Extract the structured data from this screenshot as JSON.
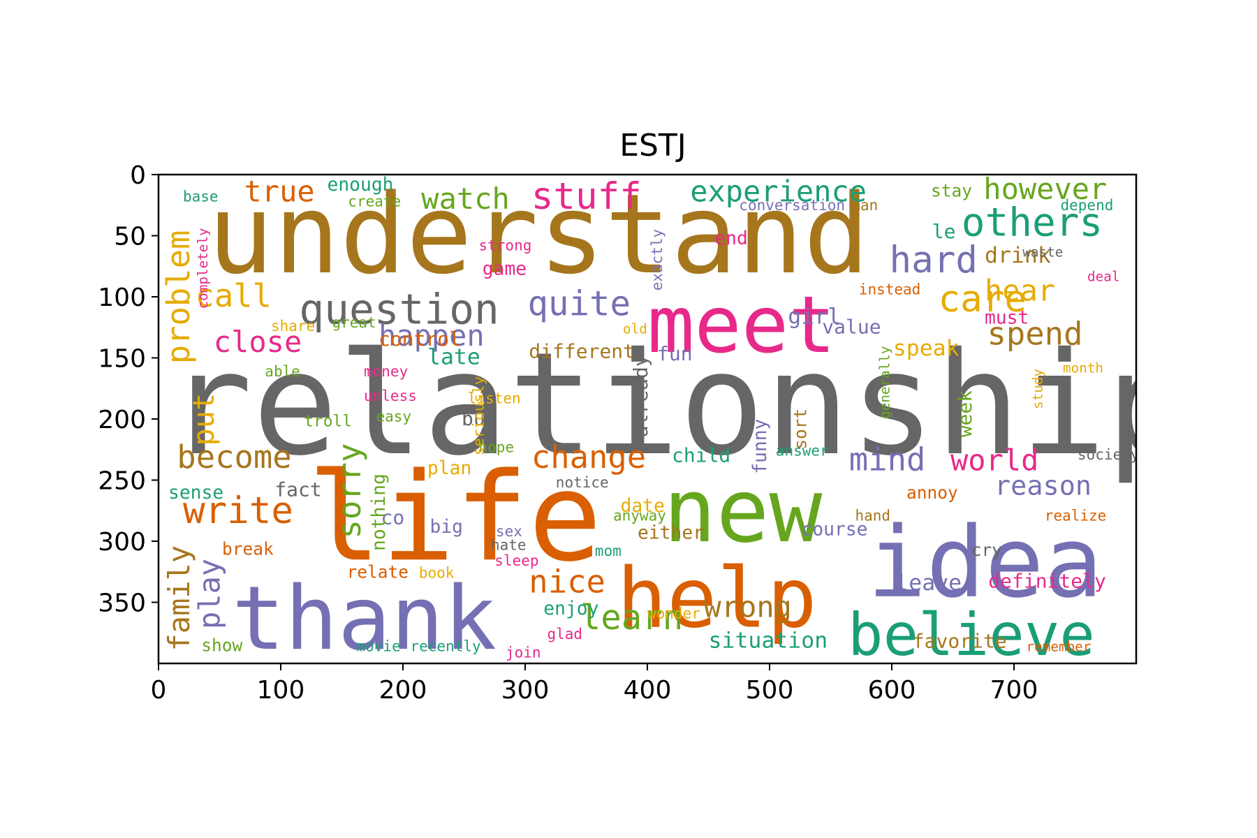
{
  "chart_data": {
    "type": "wordcloud",
    "title": "ESTJ",
    "xlabel": "",
    "ylabel": "",
    "xlim": [
      0,
      800
    ],
    "ylim": [
      400,
      0
    ],
    "xticks": [
      "0",
      "100",
      "200",
      "300",
      "400",
      "500",
      "600",
      "700"
    ],
    "yticks": [
      "0",
      "50",
      "100",
      "150",
      "200",
      "250",
      "300",
      "350"
    ],
    "palette": [
      "#1b9e77",
      "#d95f02",
      "#7570b3",
      "#e7298a",
      "#66a61e",
      "#e6ab02",
      "#a6761d",
      "#666666"
    ],
    "words": [
      {
        "text": "relationship",
        "x": 7,
        "y": 228,
        "size": 116,
        "color": "#666666"
      },
      {
        "text": "understand",
        "x": 40,
        "y": 80,
        "size": 90,
        "color": "#a6761d"
      },
      {
        "text": "life",
        "x": 122,
        "y": 315,
        "size": 100,
        "color": "#d95f02"
      },
      {
        "text": "thank",
        "x": 60,
        "y": 388,
        "size": 72,
        "color": "#7570b3"
      },
      {
        "text": "idea",
        "x": 580,
        "y": 345,
        "size": 80,
        "color": "#7570b3"
      },
      {
        "text": "meet",
        "x": 400,
        "y": 145,
        "size": 64,
        "color": "#e7298a"
      },
      {
        "text": "new",
        "x": 413,
        "y": 300,
        "size": 72,
        "color": "#66a61e"
      },
      {
        "text": "help",
        "x": 375,
        "y": 370,
        "size": 68,
        "color": "#d95f02"
      },
      {
        "text": "believe",
        "x": 564,
        "y": 393,
        "size": 48,
        "color": "#1b9e77"
      },
      {
        "text": "question",
        "x": 115,
        "y": 122,
        "size": 34,
        "color": "#666666"
      },
      {
        "text": "experience",
        "x": 435,
        "y": 22,
        "size": 24,
        "color": "#1b9e77"
      },
      {
        "text": "stuff",
        "x": 305,
        "y": 28,
        "size": 30,
        "color": "#e7298a"
      },
      {
        "text": "watch",
        "x": 215,
        "y": 28,
        "size": 24,
        "color": "#66a61e"
      },
      {
        "text": "true",
        "x": 70,
        "y": 22,
        "size": 24,
        "color": "#d95f02"
      },
      {
        "text": "enough",
        "x": 138,
        "y": 13,
        "size": 15,
        "color": "#1b9e77"
      },
      {
        "text": "however",
        "x": 675,
        "y": 20,
        "size": 24,
        "color": "#66a61e"
      },
      {
        "text": "others",
        "x": 657,
        "y": 50,
        "size": 32,
        "color": "#1b9e77"
      },
      {
        "text": "hard",
        "x": 598,
        "y": 80,
        "size": 30,
        "color": "#7570b3"
      },
      {
        "text": "care",
        "x": 638,
        "y": 112,
        "size": 30,
        "color": "#e6ab02"
      },
      {
        "text": "hear",
        "x": 676,
        "y": 103,
        "size": 24,
        "color": "#e6ab02"
      },
      {
        "text": "drink",
        "x": 676,
        "y": 72,
        "size": 18,
        "color": "#a6761d"
      },
      {
        "text": "spend",
        "x": 678,
        "y": 139,
        "size": 26,
        "color": "#a6761d"
      },
      {
        "text": "quite",
        "x": 302,
        "y": 115,
        "size": 28,
        "color": "#7570b3"
      },
      {
        "text": "happen",
        "x": 180,
        "y": 140,
        "size": 24,
        "color": "#7570b3"
      },
      {
        "text": "call",
        "x": 30,
        "y": 108,
        "size": 26,
        "color": "#e6ab02"
      },
      {
        "text": "close",
        "x": 45,
        "y": 145,
        "size": 24,
        "color": "#e7298a"
      },
      {
        "text": "become",
        "x": 15,
        "y": 240,
        "size": 26,
        "color": "#a6761d"
      },
      {
        "text": "write",
        "x": 20,
        "y": 285,
        "size": 30,
        "color": "#d95f02"
      },
      {
        "text": "change",
        "x": 305,
        "y": 240,
        "size": 26,
        "color": "#d95f02"
      },
      {
        "text": "mind",
        "x": 565,
        "y": 242,
        "size": 26,
        "color": "#7570b3"
      },
      {
        "text": "world",
        "x": 648,
        "y": 242,
        "size": 24,
        "color": "#e7298a"
      },
      {
        "text": "reason",
        "x": 684,
        "y": 262,
        "size": 22,
        "color": "#7570b3"
      },
      {
        "text": "nice",
        "x": 303,
        "y": 342,
        "size": 26,
        "color": "#d95f02"
      },
      {
        "text": "learn",
        "x": 345,
        "y": 372,
        "size": 28,
        "color": "#66a61e"
      },
      {
        "text": "wrong",
        "x": 446,
        "y": 362,
        "size": 24,
        "color": "#a6761d"
      },
      {
        "text": "situation",
        "x": 450,
        "y": 387,
        "size": 18,
        "color": "#1b9e77"
      },
      {
        "text": "favorite",
        "x": 617,
        "y": 387,
        "size": 16,
        "color": "#a6761d"
      },
      {
        "text": "definitely",
        "x": 679,
        "y": 338,
        "size": 16,
        "color": "#e7298a"
      },
      {
        "text": "leave",
        "x": 603,
        "y": 340,
        "size": 18,
        "color": "#7570b3"
      },
      {
        "text": "control",
        "x": 180,
        "y": 140,
        "size": 16,
        "color": "#d95f02"
      },
      {
        "text": "late",
        "x": 220,
        "y": 155,
        "size": 18,
        "color": "#1b9e77"
      },
      {
        "text": "different",
        "x": 303,
        "y": 150,
        "size": 16,
        "color": "#a6761d"
      },
      {
        "text": "fun",
        "x": 408,
        "y": 152,
        "size": 16,
        "color": "#7570b3"
      },
      {
        "text": "speak",
        "x": 601,
        "y": 148,
        "size": 18,
        "color": "#e6ab02"
      },
      {
        "text": "value",
        "x": 543,
        "y": 130,
        "size": 16,
        "color": "#7570b3"
      },
      {
        "text": "must",
        "x": 676,
        "y": 122,
        "size": 15,
        "color": "#e7298a"
      },
      {
        "text": "girl",
        "x": 515,
        "y": 122,
        "size": 18,
        "color": "#7570b3"
      },
      {
        "text": "instead",
        "x": 573,
        "y": 98,
        "size": 12,
        "color": "#d95f02"
      },
      {
        "text": "end",
        "x": 455,
        "y": 57,
        "size": 15,
        "color": "#e7298a"
      },
      {
        "text": "game",
        "x": 265,
        "y": 82,
        "size": 15,
        "color": "#e7298a"
      },
      {
        "text": "strong",
        "x": 262,
        "y": 62,
        "size": 12,
        "color": "#e7298a"
      },
      {
        "text": "create",
        "x": 155,
        "y": 26,
        "size": 12,
        "color": "#66a61e"
      },
      {
        "text": "base",
        "x": 20,
        "y": 22,
        "size": 12,
        "color": "#1b9e77"
      },
      {
        "text": "share",
        "x": 92,
        "y": 128,
        "size": 12,
        "color": "#e6ab02"
      },
      {
        "text": "great",
        "x": 142,
        "y": 125,
        "size": 12,
        "color": "#66a61e"
      },
      {
        "text": "able",
        "x": 87,
        "y": 165,
        "size": 12,
        "color": "#66a61e"
      },
      {
        "text": "money",
        "x": 168,
        "y": 165,
        "size": 12,
        "color": "#e7298a"
      },
      {
        "text": "unless",
        "x": 168,
        "y": 185,
        "size": 12,
        "color": "#e7298a"
      },
      {
        "text": "easy",
        "x": 178,
        "y": 202,
        "size": 12,
        "color": "#66a61e"
      },
      {
        "text": "troll",
        "x": 119,
        "y": 206,
        "size": 13,
        "color": "#66a61e"
      },
      {
        "text": "listen",
        "x": 253,
        "y": 187,
        "size": 12,
        "color": "#e6ab02"
      },
      {
        "text": "buy",
        "x": 248,
        "y": 205,
        "size": 16,
        "color": "#666666"
      },
      {
        "text": "child",
        "x": 420,
        "y": 235,
        "size": 16,
        "color": "#1b9e77"
      },
      {
        "text": "plan",
        "x": 220,
        "y": 245,
        "size": 15,
        "color": "#e6ab02"
      },
      {
        "text": "fact",
        "x": 95,
        "y": 263,
        "size": 16,
        "color": "#666666"
      },
      {
        "text": "sense",
        "x": 8,
        "y": 265,
        "size": 15,
        "color": "#1b9e77"
      },
      {
        "text": "co",
        "x": 182,
        "y": 286,
        "size": 16,
        "color": "#7570b3"
      },
      {
        "text": "date",
        "x": 378,
        "y": 276,
        "size": 15,
        "color": "#e6ab02"
      },
      {
        "text": "annoy",
        "x": 612,
        "y": 265,
        "size": 14,
        "color": "#d95f02"
      },
      {
        "text": "either",
        "x": 392,
        "y": 298,
        "size": 15,
        "color": "#a6761d"
      },
      {
        "text": "course",
        "x": 526,
        "y": 295,
        "size": 15,
        "color": "#7570b3"
      },
      {
        "text": "big",
        "x": 222,
        "y": 293,
        "size": 15,
        "color": "#7570b3"
      },
      {
        "text": "break",
        "x": 52,
        "y": 311,
        "size": 14,
        "color": "#d95f02"
      },
      {
        "text": "relate",
        "x": 154,
        "y": 330,
        "size": 14,
        "color": "#d95f02"
      },
      {
        "text": "enjoy",
        "x": 315,
        "y": 360,
        "size": 15,
        "color": "#1b9e77"
      },
      {
        "text": "show",
        "x": 35,
        "y": 390,
        "size": 14,
        "color": "#66a61e"
      },
      {
        "text": "movie",
        "x": 162,
        "y": 390,
        "size": 12,
        "color": "#1b9e77"
      },
      {
        "text": "recently",
        "x": 206,
        "y": 390,
        "size": 12,
        "color": "#1b9e77"
      },
      {
        "text": "remember",
        "x": 710,
        "y": 390,
        "size": 11,
        "color": "#d95f02"
      },
      {
        "text": "realize",
        "x": 725,
        "y": 283,
        "size": 12,
        "color": "#d95f02"
      },
      {
        "text": "society",
        "x": 752,
        "y": 233,
        "size": 12,
        "color": "#666666"
      },
      {
        "text": "hand",
        "x": 570,
        "y": 283,
        "size": 12,
        "color": "#a6761d"
      },
      {
        "text": "notice",
        "x": 325,
        "y": 256,
        "size": 12,
        "color": "#666666"
      },
      {
        "text": "anyway",
        "x": 372,
        "y": 283,
        "size": 12,
        "color": "#66a61e"
      },
      {
        "text": "hope",
        "x": 262,
        "y": 227,
        "size": 12,
        "color": "#66a61e"
      },
      {
        "text": "answer",
        "x": 505,
        "y": 230,
        "size": 12,
        "color": "#1b9e77"
      },
      {
        "text": "mom",
        "x": 357,
        "y": 312,
        "size": 12,
        "color": "#1b9e77"
      },
      {
        "text": "book",
        "x": 213,
        "y": 330,
        "size": 12,
        "color": "#e6ab02"
      },
      {
        "text": "hate",
        "x": 272,
        "y": 307,
        "size": 12,
        "color": "#666666"
      },
      {
        "text": "sleep",
        "x": 275,
        "y": 320,
        "size": 12,
        "color": "#e7298a"
      },
      {
        "text": "sex",
        "x": 276,
        "y": 296,
        "size": 12,
        "color": "#7570b3"
      },
      {
        "text": "glad",
        "x": 318,
        "y": 380,
        "size": 12,
        "color": "#e7298a"
      },
      {
        "text": "join",
        "x": 284,
        "y": 395,
        "size": 12,
        "color": "#e7298a"
      },
      {
        "text": "wonder",
        "x": 400,
        "y": 363,
        "size": 12,
        "color": "#e6ab02"
      },
      {
        "text": "cry",
        "x": 665,
        "y": 312,
        "size": 14,
        "color": "#666666"
      },
      {
        "text": "stay",
        "x": 632,
        "y": 18,
        "size": 14,
        "color": "#66a61e"
      },
      {
        "text": "depend",
        "x": 738,
        "y": 29,
        "size": 12,
        "color": "#1b9e77"
      },
      {
        "text": "man",
        "x": 567,
        "y": 29,
        "size": 12,
        "color": "#a6761d"
      },
      {
        "text": "conversation",
        "x": 475,
        "y": 29,
        "size": 12,
        "color": "#7570b3"
      },
      {
        "text": "waste",
        "x": 707,
        "y": 67,
        "size": 11,
        "color": "#666666"
      },
      {
        "text": "deal",
        "x": 760,
        "y": 87,
        "size": 11,
        "color": "#e7298a"
      },
      {
        "text": "le",
        "x": 633,
        "y": 52,
        "size": 16,
        "color": "#1b9e77"
      },
      {
        "text": "month",
        "x": 740,
        "y": 162,
        "size": 11,
        "color": "#e6ab02"
      },
      {
        "text": "old",
        "x": 380,
        "y": 130,
        "size": 11,
        "color": "#e6ab02"
      },
      {
        "text": "put",
        "x": 45,
        "y": 222,
        "size": 24,
        "color": "#e6ab02",
        "rotate": true
      },
      {
        "text": "problem",
        "x": 25,
        "y": 155,
        "size": 26,
        "color": "#e6ab02",
        "rotate": true
      },
      {
        "text": "family",
        "x": 25,
        "y": 390,
        "size": 24,
        "color": "#a6761d",
        "rotate": true
      },
      {
        "text": "play",
        "x": 50,
        "y": 372,
        "size": 24,
        "color": "#7570b3",
        "rotate": true
      },
      {
        "text": "sorry",
        "x": 165,
        "y": 298,
        "size": 26,
        "color": "#66a61e",
        "rotate": true
      },
      {
        "text": "nothing",
        "x": 185,
        "y": 308,
        "size": 15,
        "color": "#66a61e",
        "rotate": true
      },
      {
        "text": "already",
        "x": 400,
        "y": 215,
        "size": 16,
        "color": "#666666",
        "rotate": true
      },
      {
        "text": "funny",
        "x": 497,
        "y": 245,
        "size": 15,
        "color": "#7570b3",
        "rotate": true
      },
      {
        "text": "sort",
        "x": 530,
        "y": 225,
        "size": 14,
        "color": "#a6761d",
        "rotate": true
      },
      {
        "text": "week",
        "x": 665,
        "y": 215,
        "size": 16,
        "color": "#66a61e",
        "rotate": true
      },
      {
        "text": "seriously",
        "x": 266,
        "y": 230,
        "size": 12,
        "color": "#e6ab02",
        "rotate": true
      },
      {
        "text": "exactly",
        "x": 412,
        "y": 95,
        "size": 12,
        "color": "#7570b3",
        "rotate": true
      },
      {
        "text": "generally",
        "x": 598,
        "y": 200,
        "size": 11,
        "color": "#66a61e",
        "rotate": true
      },
      {
        "text": "completely",
        "x": 40,
        "y": 110,
        "size": 11,
        "color": "#e7298a",
        "rotate": true
      },
      {
        "text": "study",
        "x": 723,
        "y": 192,
        "size": 11,
        "color": "#e6ab02",
        "rotate": true
      }
    ]
  }
}
